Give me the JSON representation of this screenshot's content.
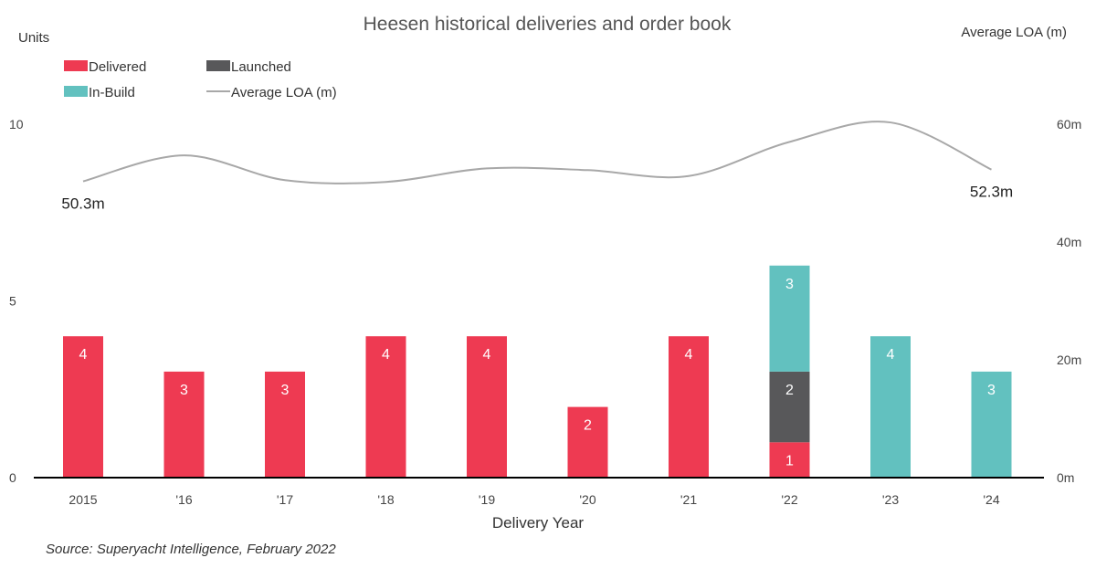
{
  "chart_data": {
    "type": "bar",
    "stacked": true,
    "title": "Heesen historical deliveries and order book",
    "xlabel": "Delivery Year",
    "ylabel": "Units",
    "y2label": "Average LOA (m)",
    "source": "Source: Superyacht Intelligence, February 2022",
    "categories": [
      "2015",
      "'16",
      "'17",
      "'18",
      "'19",
      "'20",
      "'21",
      "'22",
      "'23",
      "'24"
    ],
    "ylim": [
      0,
      10
    ],
    "y_ticks": [
      "0",
      "5",
      "10"
    ],
    "y2lim": [
      0,
      60
    ],
    "y2_ticks": [
      "0m",
      "20m",
      "40m",
      "60m"
    ],
    "grid": false,
    "legend_position": "top-left",
    "series": [
      {
        "name": "Delivered",
        "color": "#ee3a52",
        "values": [
          4,
          3,
          3,
          4,
          4,
          2,
          4,
          1,
          0,
          0
        ]
      },
      {
        "name": "Launched",
        "color": "#58585a",
        "values": [
          0,
          0,
          0,
          0,
          0,
          0,
          0,
          2,
          0,
          0
        ]
      },
      {
        "name": "In-Build",
        "color": "#62c1bf",
        "values": [
          0,
          0,
          0,
          0,
          0,
          0,
          0,
          3,
          4,
          3
        ]
      }
    ],
    "line_series": {
      "name": "Average LOA (m)",
      "color": "#a8a8a8",
      "axis": "right",
      "values": [
        50.3,
        54.7,
        50.5,
        50.2,
        52.5,
        52.2,
        51.2,
        57.0,
        60.3,
        52.3
      ],
      "labels": [
        {
          "index": 0,
          "text": "50.3m"
        },
        {
          "index": 9,
          "text": "52.3m"
        }
      ]
    }
  }
}
